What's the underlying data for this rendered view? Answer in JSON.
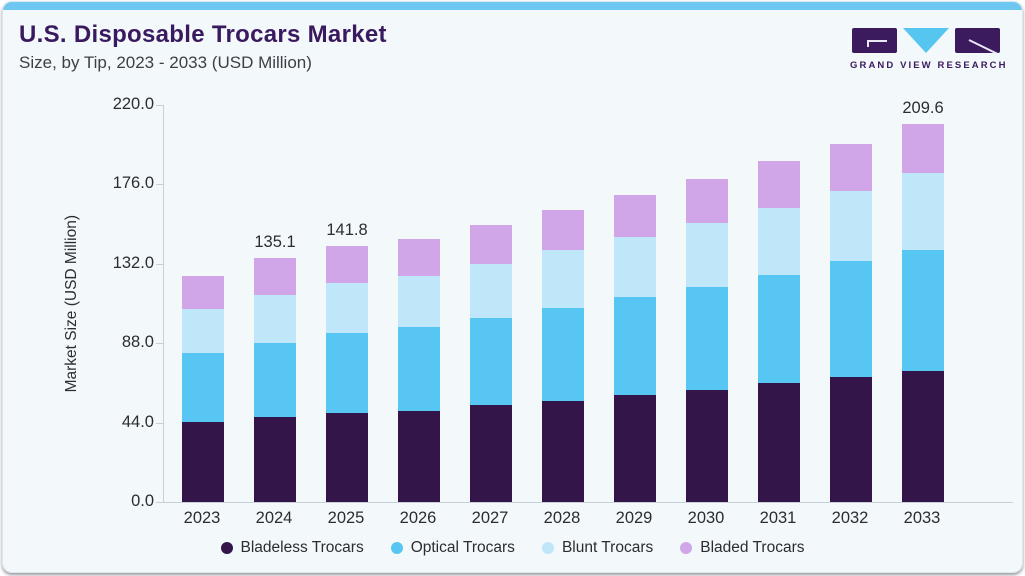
{
  "header": {
    "title": "U.S. Disposable Trocars Market",
    "subtitle": "Size, by Tip, 2023 - 2033 (USD Million)"
  },
  "logo": {
    "text": "GRAND VIEW RESEARCH"
  },
  "chart_data": {
    "type": "bar",
    "stacked": true,
    "title": "U.S. Disposable Trocars Market Size, by Tip, 2023 - 2033 (USD Million)",
    "xlabel": "",
    "ylabel": "Market Size (USD Million)",
    "ylim": [
      0,
      220
    ],
    "ytick_labels": [
      "0.0",
      "44.0",
      "88.0",
      "132.0",
      "176.0",
      "220.0"
    ],
    "grid": false,
    "legend_position": "bottom",
    "categories": [
      "2023",
      "2024",
      "2025",
      "2026",
      "2027",
      "2028",
      "2029",
      "2030",
      "2031",
      "2032",
      "2033"
    ],
    "series": [
      {
        "name": "Bladeless Trocars",
        "color": "#331549",
        "values": [
          44.1,
          47.2,
          49.4,
          50.5,
          53.6,
          56.1,
          59.4,
          62.2,
          65.8,
          69.2,
          72.4
        ]
      },
      {
        "name": "Optical Trocars",
        "color": "#57c6f2",
        "values": [
          38.4,
          41.0,
          44.3,
          46.7,
          48.6,
          51.3,
          54.3,
          57.2,
          60.1,
          64.1,
          67.0
        ]
      },
      {
        "name": "Blunt Trocars",
        "color": "#bfe7f9",
        "values": [
          24.6,
          26.7,
          27.4,
          27.9,
          29.8,
          32.4,
          32.9,
          35.5,
          37.3,
          38.8,
          43.0
        ]
      },
      {
        "name": "Bladed Trocars",
        "color": "#d0a6e9",
        "values": [
          17.9,
          20.2,
          20.7,
          20.9,
          21.4,
          21.8,
          23.4,
          24.2,
          25.9,
          26.2,
          27.2
        ]
      }
    ],
    "bar_total_labels": {
      "2024": "135.1",
      "2025": "141.8",
      "2033": "209.6"
    }
  },
  "colors": {
    "accent_strip": "#6ec7f1",
    "title_text": "#3a1a5e",
    "axis_line": "#c6d0d7",
    "card_background": "#f3f8fb"
  }
}
